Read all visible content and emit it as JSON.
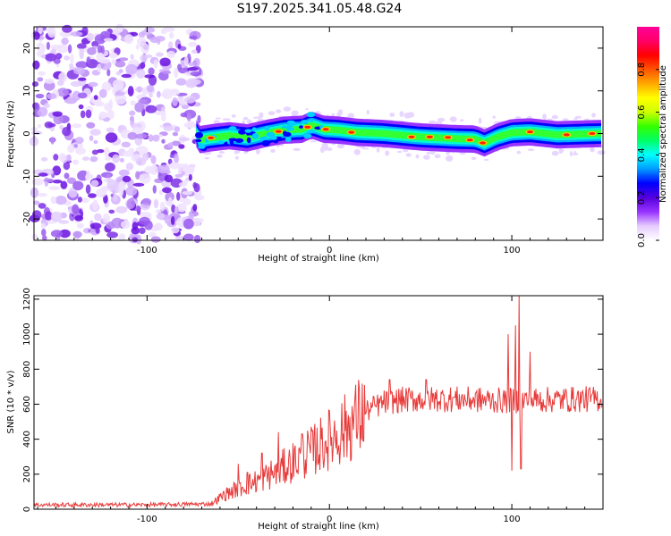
{
  "title": "S197.2025.341.05.48.G24",
  "chart_data": [
    {
      "type": "heatmap",
      "title": "S197.2025.341.05.48.G24",
      "xlabel": "Height of straight line (km)",
      "ylabel": "Frequency (Hz)",
      "xlim": [
        -162,
        150
      ],
      "ylim": [
        -25,
        25
      ],
      "xticks": [
        -100,
        0,
        100
      ],
      "xtick_labels": [
        "-100",
        "0",
        "100"
      ],
      "yticks": [
        -20,
        -10,
        0,
        10,
        20
      ],
      "ytick_labels": [
        "-20",
        "-10",
        "0",
        "10",
        "20"
      ],
      "noise_region_km": [
        -162,
        -71
      ],
      "signal_region_km": [
        -73,
        150
      ],
      "ridge_frequency": [
        {
          "x": -72,
          "y": -1.5
        },
        {
          "x": -65,
          "y": -1.0
        },
        {
          "x": -55,
          "y": -0.5
        },
        {
          "x": -45,
          "y": -1.0
        },
        {
          "x": -35,
          "y": 0.0
        },
        {
          "x": -25,
          "y": 0.8
        },
        {
          "x": -15,
          "y": 1.0
        },
        {
          "x": -10,
          "y": 2.0
        },
        {
          "x": -3,
          "y": 1.0
        },
        {
          "x": 5,
          "y": 0.8
        },
        {
          "x": 15,
          "y": 0.3
        },
        {
          "x": 30,
          "y": 0.0
        },
        {
          "x": 50,
          "y": -0.8
        },
        {
          "x": 70,
          "y": -1.2
        },
        {
          "x": 80,
          "y": -1.3
        },
        {
          "x": 85,
          "y": -2.2
        },
        {
          "x": 92,
          "y": -0.8
        },
        {
          "x": 100,
          "y": 0.2
        },
        {
          "x": 110,
          "y": 0.4
        },
        {
          "x": 125,
          "y": -0.3
        },
        {
          "x": 140,
          "y": -0.1
        },
        {
          "x": 148,
          "y": 0.0
        }
      ],
      "hot_spots": [
        {
          "x": -65,
          "y": -1.0
        },
        {
          "x": -28,
          "y": 0.5
        },
        {
          "x": -12,
          "y": 1.5
        },
        {
          "x": -2,
          "y": 1.0
        },
        {
          "x": 12,
          "y": 0.3
        },
        {
          "x": 45,
          "y": -0.8
        },
        {
          "x": 55,
          "y": -0.8
        },
        {
          "x": 65,
          "y": -0.9
        },
        {
          "x": 77,
          "y": -1.5
        },
        {
          "x": 84,
          "y": -2.2
        },
        {
          "x": 110,
          "y": 0.4
        },
        {
          "x": 130,
          "y": -0.3
        },
        {
          "x": 144,
          "y": 0.0
        }
      ],
      "colorbar": {
        "label": "Normalized spectral amplitude",
        "range": [
          0,
          1
        ],
        "ticks": [
          0.0,
          0.2,
          0.4,
          0.6,
          0.8
        ],
        "tick_labels": [
          "0.0",
          "0.2",
          "0.4",
          "0.6",
          "0.8"
        ],
        "colors": [
          "#FFFFFF",
          "#E6CCFF",
          "#9933FF",
          "#5500DD",
          "#0000FF",
          "#0099FF",
          "#00FFFF",
          "#00FF66",
          "#33FF00",
          "#CCFF00",
          "#FFFF00",
          "#FFAA00",
          "#FF5500",
          "#FF0000",
          "#FF0066",
          "#FF0099"
        ]
      }
    },
    {
      "type": "line",
      "xlabel": "Height of straight line (km)",
      "ylabel": "SNR (10 * v/v)",
      "xlim": [
        -162,
        150
      ],
      "ylim": [
        0,
        1220
      ],
      "xticks": [
        -100,
        0,
        100
      ],
      "xtick_labels": [
        "-100",
        "0",
        "100"
      ],
      "yticks": [
        0,
        200,
        400,
        600,
        800,
        1000,
        1200
      ],
      "ytick_labels": [
        "0",
        "200",
        "400",
        "600",
        "800",
        "1000",
        "1200"
      ],
      "series": [
        {
          "name": "SNR",
          "color": "#E83A3A",
          "envelope": [
            {
              "x": -162,
              "y": 25
            },
            {
              "x": -100,
              "y": 25
            },
            {
              "x": -65,
              "y": 30
            },
            {
              "x": -58,
              "y": 80
            },
            {
              "x": -50,
              "y": 120
            },
            {
              "x": -40,
              "y": 160
            },
            {
              "x": -30,
              "y": 210
            },
            {
              "x": -20,
              "y": 270
            },
            {
              "x": -10,
              "y": 330
            },
            {
              "x": 0,
              "y": 400
            },
            {
              "x": 10,
              "y": 470
            },
            {
              "x": 20,
              "y": 560
            },
            {
              "x": 30,
              "y": 610
            },
            {
              "x": 40,
              "y": 625
            },
            {
              "x": 60,
              "y": 630
            },
            {
              "x": 80,
              "y": 625
            },
            {
              "x": 95,
              "y": 620
            },
            {
              "x": 120,
              "y": 625
            },
            {
              "x": 150,
              "y": 630
            }
          ],
          "spikes": [
            {
              "x": -50,
              "y": 260
            },
            {
              "x": -45,
              "y": 210
            },
            {
              "x": -37,
              "y": 320
            },
            {
              "x": -28,
              "y": 440
            },
            {
              "x": -22,
              "y": 340
            },
            {
              "x": -15,
              "y": 430
            },
            {
              "x": -10,
              "y": 470
            },
            {
              "x": 33,
              "y": 740
            },
            {
              "x": 53,
              "y": 740
            },
            {
              "x": 98,
              "y": 1000
            },
            {
              "x": 100,
              "y": 220
            },
            {
              "x": 102,
              "y": 1050
            },
            {
              "x": 104,
              "y": 1220
            },
            {
              "x": 105,
              "y": 230
            },
            {
              "x": 110,
              "y": 900
            }
          ]
        }
      ]
    }
  ]
}
